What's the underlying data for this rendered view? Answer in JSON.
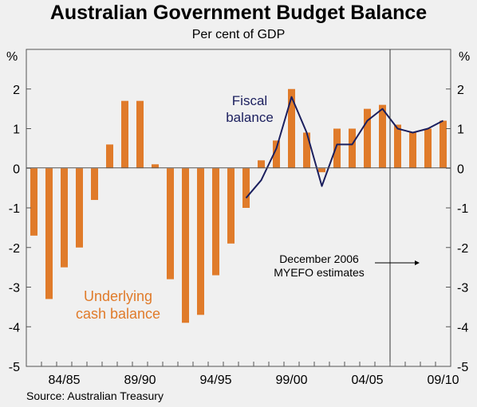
{
  "title": "Australian Government Budget Balance",
  "subtitle": "Per cent of GDP",
  "source": "Source: Australian Treasury",
  "colors": {
    "bars": "#e07b2a",
    "fiscal_line": "#1b1f5e",
    "frame": "#555555",
    "background": "#f0f0f0"
  },
  "chart_data": {
    "type": "bar",
    "title": "Australian Government Budget Balance",
    "subtitle": "Per cent of GDP",
    "y_unit_left": "%",
    "y_unit_right": "%",
    "ylim": [
      -5,
      3
    ],
    "yticks": [
      -5,
      -4,
      -3,
      -2,
      -1,
      0,
      1,
      2
    ],
    "grid": false,
    "categories": [
      "82/83",
      "83/84",
      "84/85",
      "85/86",
      "86/87",
      "87/88",
      "88/89",
      "89/90",
      "90/91",
      "91/92",
      "92/93",
      "93/94",
      "94/95",
      "95/96",
      "96/97",
      "97/98",
      "98/99",
      "99/00",
      "00/01",
      "01/02",
      "02/03",
      "03/04",
      "04/05",
      "05/06",
      "06/07",
      "07/08",
      "08/09",
      "09/10"
    ],
    "x_tick_labels": [
      "84/85",
      "89/90",
      "94/95",
      "99/00",
      "04/05",
      "09/10"
    ],
    "series": [
      {
        "name": "Underlying cash balance",
        "type": "bar",
        "values": [
          -1.7,
          -3.3,
          -2.5,
          -2.0,
          -0.8,
          0.6,
          1.7,
          1.7,
          0.1,
          -2.8,
          -3.9,
          -3.7,
          -2.7,
          -1.9,
          -1.0,
          0.2,
          0.7,
          2.0,
          0.9,
          -0.1,
          1.0,
          1.0,
          1.5,
          1.6,
          1.1,
          0.9,
          1.0,
          1.2
        ]
      },
      {
        "name": "Fiscal balance",
        "type": "line",
        "values": [
          null,
          null,
          null,
          null,
          null,
          null,
          null,
          null,
          null,
          null,
          null,
          null,
          null,
          null,
          -0.75,
          -0.3,
          0.5,
          1.8,
          0.9,
          -0.45,
          0.6,
          0.6,
          1.2,
          1.5,
          1.0,
          0.9,
          1.0,
          1.2
        ]
      }
    ],
    "annotations": {
      "fiscal_label": [
        "Fiscal",
        "balance"
      ],
      "underlying_label": [
        "Underlying",
        "cash balance"
      ],
      "estimates_label": [
        "December 2006",
        "MYEFO estimates"
      ],
      "estimates_start_category": "06/07"
    }
  }
}
